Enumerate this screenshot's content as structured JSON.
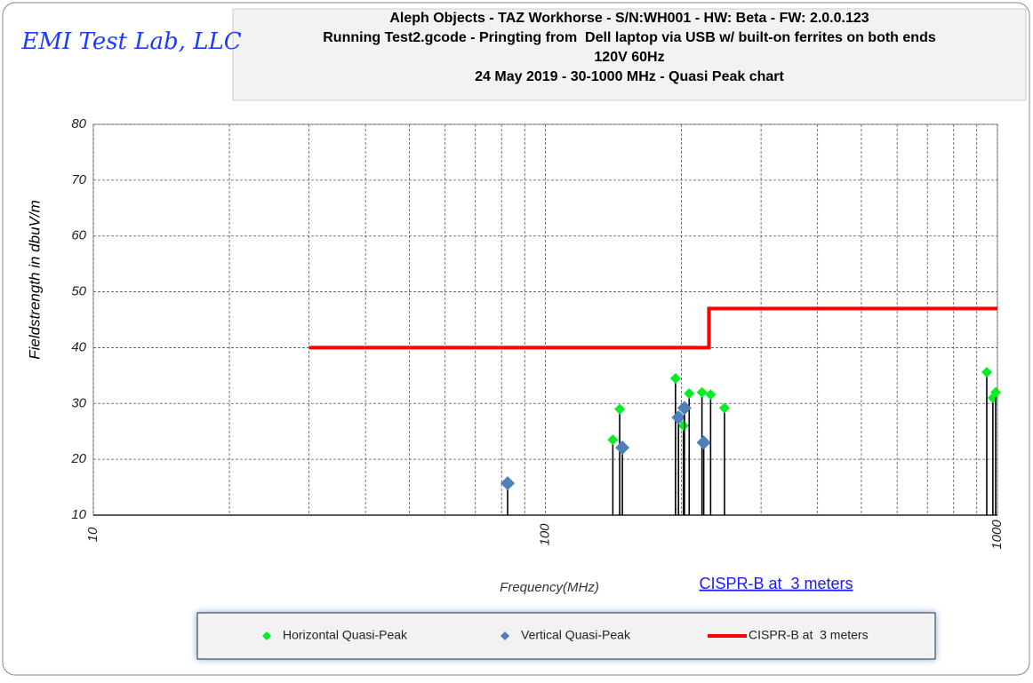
{
  "chart_data": {
    "type": "scatter",
    "logo": "EMI Test Lab, LLC",
    "title": [
      "Aleph Objects - TAZ Workhorse - S/N:WH001 - HW: Beta - FW: 2.0.0.123",
      "Running Test2.gcode - Pringting from  Dell laptop via USB w/ built-on ferrites on both ends",
      "120V 60Hz",
      "24 May 2019 - 30-1000 MHz - Quasi Peak chart"
    ],
    "x_label": "Frequency(MHz)",
    "y_label": "Fieldstrength in dbuV/m",
    "annotation": "CISPR-B at  3 meters",
    "x_log": true,
    "grid": true,
    "x_minor_grid": true,
    "stems": true,
    "legend": "bottom",
    "xlim": [
      10,
      1000
    ],
    "xticks": [
      10,
      100,
      1000
    ],
    "ylim": [
      10,
      80
    ],
    "yticks": [
      10,
      20,
      30,
      40,
      50,
      60,
      70,
      80
    ],
    "series": [
      {
        "name": "Horizontal Quasi-Peak",
        "color": "#00ee22",
        "marker": "diamond",
        "x": [
          141,
          146,
          194,
          202,
          208,
          222,
          232,
          249,
          947,
          977,
          991
        ],
        "values": [
          23.5,
          29,
          34.5,
          26,
          31.8,
          32,
          31.6,
          29.2,
          35.6,
          31,
          32
        ]
      },
      {
        "name": "Vertical Quasi-Peak",
        "color": "#4f7fb8",
        "marker": "diamond",
        "x": [
          82.5,
          148,
          197,
          203,
          224
        ],
        "values": [
          15.7,
          22.1,
          27.5,
          29.2,
          23
        ]
      },
      {
        "name": "CISPR-B at  3 meters",
        "color": "#ff0000",
        "marker": "line",
        "x": [
          30,
          230,
          230,
          1000
        ],
        "values": [
          40,
          40,
          47,
          47
        ]
      }
    ]
  }
}
